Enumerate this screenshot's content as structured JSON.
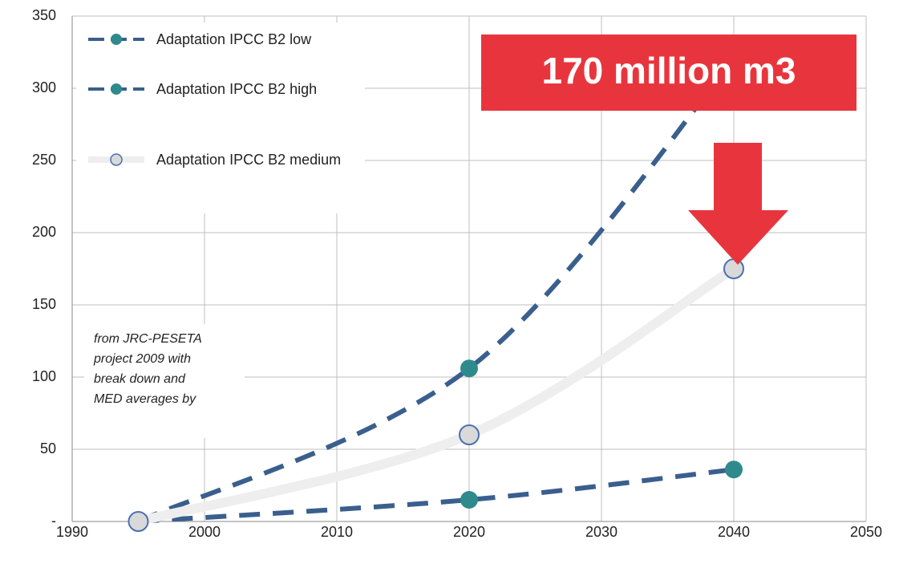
{
  "chart_data": {
    "type": "line",
    "x": [
      1995,
      2020,
      2040
    ],
    "series": [
      {
        "name": "Adaptation IPCC B2 low",
        "color": "#3a5f8e",
        "marker_color": "#2f8a8c",
        "line_style": "dashed",
        "values": [
          0,
          15,
          36
        ]
      },
      {
        "name": "Adaptation IPCC B2 high",
        "color": "#3a5f8e",
        "marker_color": "#2f8a8c",
        "line_style": "dashed",
        "values": [
          0,
          106,
          320
        ]
      },
      {
        "name": "Adaptation IPCC B2 medium",
        "color": "#eeeeee",
        "marker_color": "#d9d9d9",
        "line_style": "solid",
        "values": [
          0,
          60,
          175
        ]
      }
    ],
    "xlim": [
      1990,
      2050
    ],
    "xticks": [
      1990,
      2000,
      2010,
      2020,
      2030,
      2040,
      2050
    ],
    "ylim": [
      0,
      350
    ],
    "yticks": [
      {
        "value": 0,
        "label": "-"
      },
      50,
      100,
      150,
      200,
      250,
      300,
      350
    ],
    "grid": true,
    "legend": "upper left",
    "annotations": {
      "callout": "170 million m3",
      "note": [
        "from JRC-PESETA",
        "project 2009 with",
        "break down  and",
        "MED averages  by"
      ]
    }
  }
}
